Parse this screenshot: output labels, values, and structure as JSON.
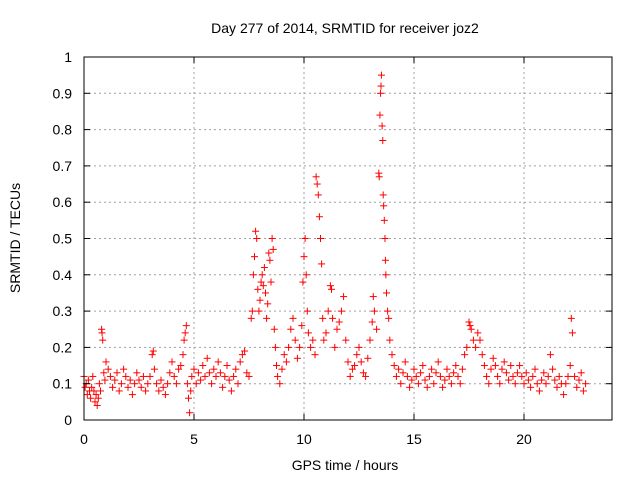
{
  "chart_data": {
    "type": "scatter",
    "title": "Day 277 of 2014, SRMTID for receiver joz2",
    "xlabel": "GPS time / hours",
    "ylabel": "SRMTID / TECUs",
    "xlim": [
      0,
      24
    ],
    "ylim": [
      0,
      1
    ],
    "xticks": [
      0,
      5,
      10,
      15,
      20
    ],
    "yticks": [
      0,
      0.1,
      0.2,
      0.3,
      0.4,
      0.5,
      0.6,
      0.7,
      0.8,
      0.9,
      1
    ],
    "xtick_labels": [
      "0",
      "5",
      "10",
      "15",
      "20"
    ],
    "ytick_labels": [
      "0",
      "0.1",
      "0.2",
      "0.3",
      "0.4",
      "0.5",
      "0.6",
      "0.7",
      "0.8",
      "0.9",
      "1"
    ],
    "grid": true,
    "marker": "plus",
    "color": "#ff0000",
    "series": [
      {
        "name": "SRMTID",
        "points": [
          [
            0.0,
            0.12
          ],
          [
            0.05,
            0.09
          ],
          [
            0.1,
            0.1
          ],
          [
            0.15,
            0.07
          ],
          [
            0.2,
            0.11
          ],
          [
            0.25,
            0.08
          ],
          [
            0.3,
            0.06
          ],
          [
            0.35,
            0.09
          ],
          [
            0.4,
            0.12
          ],
          [
            0.45,
            0.08
          ],
          [
            0.5,
            0.05
          ],
          [
            0.55,
            0.07
          ],
          [
            0.6,
            0.04
          ],
          [
            0.65,
            0.06
          ],
          [
            0.7,
            0.1
          ],
          [
            0.75,
            0.08
          ],
          [
            0.8,
            0.25
          ],
          [
            0.82,
            0.24
          ],
          [
            0.85,
            0.22
          ],
          [
            0.9,
            0.13
          ],
          [
            0.95,
            0.11
          ],
          [
            1.0,
            0.16
          ],
          [
            1.1,
            0.14
          ],
          [
            1.2,
            0.12
          ],
          [
            1.3,
            0.09
          ],
          [
            1.4,
            0.11
          ],
          [
            1.5,
            0.13
          ],
          [
            1.6,
            0.08
          ],
          [
            1.7,
            0.1
          ],
          [
            1.8,
            0.14
          ],
          [
            1.9,
            0.12
          ],
          [
            2.0,
            0.09
          ],
          [
            2.1,
            0.11
          ],
          [
            2.2,
            0.07
          ],
          [
            2.3,
            0.1
          ],
          [
            2.4,
            0.13
          ],
          [
            2.5,
            0.11
          ],
          [
            2.6,
            0.09
          ],
          [
            2.7,
            0.12
          ],
          [
            2.8,
            0.08
          ],
          [
            2.9,
            0.1
          ],
          [
            3.0,
            0.12
          ],
          [
            3.1,
            0.18
          ],
          [
            3.15,
            0.19
          ],
          [
            3.2,
            0.14
          ],
          [
            3.3,
            0.1
          ],
          [
            3.4,
            0.08
          ],
          [
            3.5,
            0.11
          ],
          [
            3.6,
            0.09
          ],
          [
            3.7,
            0.07
          ],
          [
            3.8,
            0.1
          ],
          [
            3.9,
            0.13
          ],
          [
            4.0,
            0.16
          ],
          [
            4.1,
            0.12
          ],
          [
            4.2,
            0.1
          ],
          [
            4.3,
            0.14
          ],
          [
            4.4,
            0.15
          ],
          [
            4.5,
            0.18
          ],
          [
            4.55,
            0.22
          ],
          [
            4.6,
            0.24
          ],
          [
            4.65,
            0.26
          ],
          [
            4.7,
            0.1
          ],
          [
            4.75,
            0.06
          ],
          [
            4.8,
            0.02
          ],
          [
            4.85,
            0.08
          ],
          [
            4.9,
            0.12
          ],
          [
            5.0,
            0.14
          ],
          [
            5.1,
            0.1
          ],
          [
            5.2,
            0.13
          ],
          [
            5.3,
            0.11
          ],
          [
            5.4,
            0.15
          ],
          [
            5.5,
            0.12
          ],
          [
            5.6,
            0.17
          ],
          [
            5.7,
            0.13
          ],
          [
            5.8,
            0.1
          ],
          [
            5.9,
            0.14
          ],
          [
            6.0,
            0.12
          ],
          [
            6.1,
            0.16
          ],
          [
            6.2,
            0.13
          ],
          [
            6.3,
            0.09
          ],
          [
            6.4,
            0.12
          ],
          [
            6.5,
            0.15
          ],
          [
            6.6,
            0.11
          ],
          [
            6.7,
            0.08
          ],
          [
            6.8,
            0.12
          ],
          [
            6.9,
            0.14
          ],
          [
            7.0,
            0.1
          ],
          [
            7.1,
            0.16
          ],
          [
            7.2,
            0.18
          ],
          [
            7.3,
            0.19
          ],
          [
            7.4,
            0.13
          ],
          [
            7.5,
            0.12
          ],
          [
            7.6,
            0.28
          ],
          [
            7.65,
            0.3
          ],
          [
            7.7,
            0.4
          ],
          [
            7.75,
            0.45
          ],
          [
            7.8,
            0.52
          ],
          [
            7.85,
            0.5
          ],
          [
            7.9,
            0.36
          ],
          [
            7.95,
            0.3
          ],
          [
            8.0,
            0.33
          ],
          [
            8.05,
            0.38
          ],
          [
            8.1,
            0.4
          ],
          [
            8.15,
            0.37
          ],
          [
            8.2,
            0.42
          ],
          [
            8.25,
            0.35
          ],
          [
            8.3,
            0.28
          ],
          [
            8.35,
            0.32
          ],
          [
            8.4,
            0.46
          ],
          [
            8.45,
            0.44
          ],
          [
            8.5,
            0.38
          ],
          [
            8.55,
            0.5
          ],
          [
            8.6,
            0.47
          ],
          [
            8.65,
            0.25
          ],
          [
            8.7,
            0.2
          ],
          [
            8.75,
            0.15
          ],
          [
            8.8,
            0.12
          ],
          [
            8.9,
            0.1
          ],
          [
            9.0,
            0.14
          ],
          [
            9.1,
            0.18
          ],
          [
            9.2,
            0.16
          ],
          [
            9.3,
            0.2
          ],
          [
            9.4,
            0.25
          ],
          [
            9.5,
            0.28
          ],
          [
            9.6,
            0.22
          ],
          [
            9.7,
            0.17
          ],
          [
            9.8,
            0.2
          ],
          [
            9.9,
            0.26
          ],
          [
            9.95,
            0.38
          ],
          [
            10.0,
            0.45
          ],
          [
            10.05,
            0.5
          ],
          [
            10.1,
            0.4
          ],
          [
            10.15,
            0.3
          ],
          [
            10.2,
            0.24
          ],
          [
            10.3,
            0.2
          ],
          [
            10.4,
            0.22
          ],
          [
            10.5,
            0.18
          ],
          [
            10.55,
            0.67
          ],
          [
            10.6,
            0.65
          ],
          [
            10.65,
            0.62
          ],
          [
            10.7,
            0.56
          ],
          [
            10.75,
            0.5
          ],
          [
            10.8,
            0.43
          ],
          [
            10.85,
            0.28
          ],
          [
            10.9,
            0.22
          ],
          [
            11.0,
            0.24
          ],
          [
            11.1,
            0.3
          ],
          [
            11.2,
            0.37
          ],
          [
            11.25,
            0.36
          ],
          [
            11.3,
            0.28
          ],
          [
            11.4,
            0.2
          ],
          [
            11.5,
            0.25
          ],
          [
            11.6,
            0.27
          ],
          [
            11.7,
            0.3
          ],
          [
            11.8,
            0.34
          ],
          [
            11.9,
            0.22
          ],
          [
            12.0,
            0.16
          ],
          [
            12.1,
            0.12
          ],
          [
            12.2,
            0.14
          ],
          [
            12.3,
            0.15
          ],
          [
            12.4,
            0.18
          ],
          [
            12.5,
            0.2
          ],
          [
            12.6,
            0.16
          ],
          [
            12.7,
            0.13
          ],
          [
            12.8,
            0.12
          ],
          [
            12.9,
            0.17
          ],
          [
            13.0,
            0.22
          ],
          [
            13.1,
            0.27
          ],
          [
            13.15,
            0.34
          ],
          [
            13.2,
            0.3
          ],
          [
            13.3,
            0.25
          ],
          [
            13.4,
            0.68
          ],
          [
            13.42,
            0.67
          ],
          [
            13.45,
            0.84
          ],
          [
            13.48,
            0.9
          ],
          [
            13.5,
            0.92
          ],
          [
            13.52,
            0.95
          ],
          [
            13.55,
            0.81
          ],
          [
            13.58,
            0.77
          ],
          [
            13.6,
            0.62
          ],
          [
            13.62,
            0.59
          ],
          [
            13.65,
            0.55
          ],
          [
            13.68,
            0.5
          ],
          [
            13.7,
            0.44
          ],
          [
            13.72,
            0.4
          ],
          [
            13.75,
            0.35
          ],
          [
            13.8,
            0.3
          ],
          [
            13.85,
            0.28
          ],
          [
            13.9,
            0.22
          ],
          [
            14.0,
            0.18
          ],
          [
            14.1,
            0.15
          ],
          [
            14.2,
            0.12
          ],
          [
            14.3,
            0.14
          ],
          [
            14.4,
            0.1
          ],
          [
            14.5,
            0.13
          ],
          [
            14.6,
            0.16
          ],
          [
            14.7,
            0.12
          ],
          [
            14.8,
            0.09
          ],
          [
            14.9,
            0.11
          ],
          [
            15.0,
            0.14
          ],
          [
            15.1,
            0.12
          ],
          [
            15.2,
            0.1
          ],
          [
            15.3,
            0.13
          ],
          [
            15.4,
            0.15
          ],
          [
            15.5,
            0.11
          ],
          [
            15.6,
            0.09
          ],
          [
            15.7,
            0.12
          ],
          [
            15.8,
            0.14
          ],
          [
            15.9,
            0.1
          ],
          [
            16.0,
            0.13
          ],
          [
            16.1,
            0.16
          ],
          [
            16.2,
            0.12
          ],
          [
            16.3,
            0.09
          ],
          [
            16.4,
            0.11
          ],
          [
            16.5,
            0.14
          ],
          [
            16.6,
            0.12
          ],
          [
            16.7,
            0.1
          ],
          [
            16.8,
            0.13
          ],
          [
            16.9,
            0.15
          ],
          [
            17.0,
            0.12
          ],
          [
            17.1,
            0.1
          ],
          [
            17.2,
            0.14
          ],
          [
            17.3,
            0.18
          ],
          [
            17.4,
            0.2
          ],
          [
            17.5,
            0.27
          ],
          [
            17.55,
            0.26
          ],
          [
            17.6,
            0.25
          ],
          [
            17.7,
            0.22
          ],
          [
            17.8,
            0.2
          ],
          [
            17.9,
            0.24
          ],
          [
            18.0,
            0.22
          ],
          [
            18.1,
            0.18
          ],
          [
            18.2,
            0.15
          ],
          [
            18.3,
            0.12
          ],
          [
            18.4,
            0.1
          ],
          [
            18.5,
            0.14
          ],
          [
            18.6,
            0.17
          ],
          [
            18.7,
            0.15
          ],
          [
            18.8,
            0.12
          ],
          [
            18.9,
            0.1
          ],
          [
            19.0,
            0.14
          ],
          [
            19.1,
            0.16
          ],
          [
            19.2,
            0.13
          ],
          [
            19.3,
            0.11
          ],
          [
            19.4,
            0.15
          ],
          [
            19.5,
            0.12
          ],
          [
            19.6,
            0.1
          ],
          [
            19.7,
            0.13
          ],
          [
            19.8,
            0.15
          ],
          [
            19.9,
            0.12
          ],
          [
            20.0,
            0.1
          ],
          [
            20.1,
            0.13
          ],
          [
            20.2,
            0.11
          ],
          [
            20.3,
            0.09
          ],
          [
            20.4,
            0.12
          ],
          [
            20.5,
            0.14
          ],
          [
            20.6,
            0.1
          ],
          [
            20.7,
            0.08
          ],
          [
            20.8,
            0.11
          ],
          [
            20.9,
            0.13
          ],
          [
            21.0,
            0.1
          ],
          [
            21.1,
            0.12
          ],
          [
            21.2,
            0.18
          ],
          [
            21.3,
            0.14
          ],
          [
            21.4,
            0.11
          ],
          [
            21.5,
            0.09
          ],
          [
            21.6,
            0.12
          ],
          [
            21.7,
            0.1
          ],
          [
            21.8,
            0.07
          ],
          [
            21.9,
            0.1
          ],
          [
            22.0,
            0.12
          ],
          [
            22.1,
            0.15
          ],
          [
            22.15,
            0.28
          ],
          [
            22.2,
            0.24
          ],
          [
            22.3,
            0.12
          ],
          [
            22.4,
            0.09
          ],
          [
            22.5,
            0.11
          ],
          [
            22.6,
            0.13
          ],
          [
            22.7,
            0.08
          ],
          [
            22.8,
            0.1
          ]
        ]
      }
    ]
  }
}
